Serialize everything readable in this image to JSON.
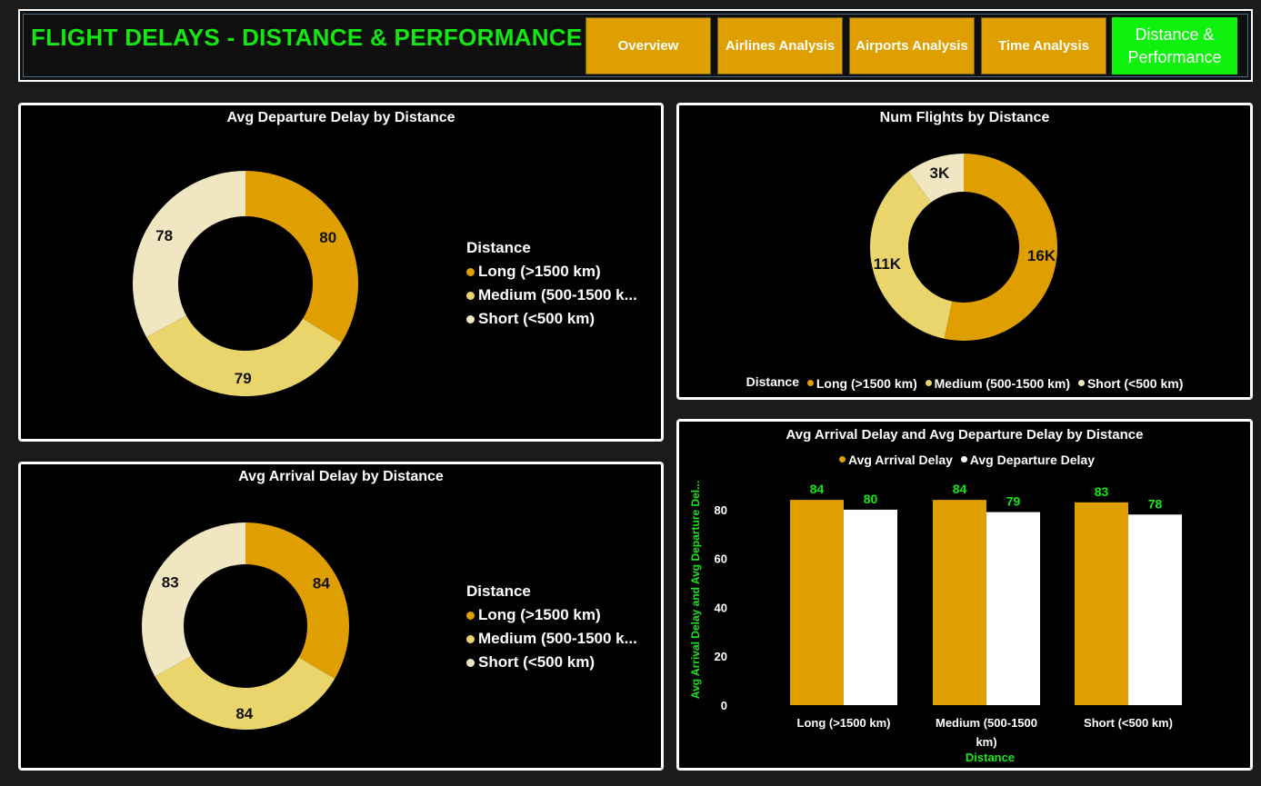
{
  "header": {
    "title": "FLIGHT DELAYS - DISTANCE & PERFORMANCE",
    "nav": [
      {
        "label": "Overview",
        "active": false
      },
      {
        "label": "Airlines Analysis",
        "active": false
      },
      {
        "label": "Airports Analysis",
        "active": false
      },
      {
        "label": "Time Analysis",
        "active": false
      },
      {
        "label": "Distance & Performance",
        "active": true
      }
    ]
  },
  "colors": {
    "long": "#df9f00",
    "medium": "#ead46c",
    "short": "#f1e6c2",
    "arrival": "#df9f00",
    "departure": "#ffffff",
    "accent": "#13e813"
  },
  "legend": {
    "title": "Distance",
    "items": [
      "Long (>1500 km)",
      "Medium (500-1500 k...",
      "Short (<500 km)"
    ],
    "row_items": [
      "Long (>1500 km)",
      "Medium (500-1500 km)",
      "Short (<500 km)"
    ]
  },
  "chart_data": [
    {
      "type": "pie",
      "title": "Avg Departure Delay by Distance",
      "categories": [
        "Long (>1500 km)",
        "Medium (500-1500 km)",
        "Short (<500 km)"
      ],
      "values": [
        80,
        79,
        78
      ],
      "labels": [
        "80",
        "79",
        "78"
      ],
      "legend_title": "Distance",
      "legend_position": "right"
    },
    {
      "type": "pie",
      "title": "Avg Arrival Delay by Distance",
      "categories": [
        "Long (>1500 km)",
        "Medium (500-1500 km)",
        "Short (<500 km)"
      ],
      "values": [
        84,
        84,
        83
      ],
      "labels": [
        "84",
        "84",
        "83"
      ],
      "legend_title": "Distance",
      "legend_position": "right"
    },
    {
      "type": "pie",
      "title": "Num Flights by Distance",
      "categories": [
        "Long (>1500 km)",
        "Medium (500-1500 km)",
        "Short (<500 km)"
      ],
      "values": [
        16000,
        11000,
        3000
      ],
      "labels": [
        "16K",
        "11K",
        "3K"
      ],
      "legend_title": "Distance",
      "legend_position": "bottom"
    },
    {
      "type": "bar",
      "title": "Avg Arrival Delay and Avg Departure Delay by Distance",
      "categories": [
        "Long (>1500 km)",
        "Medium (500-1500 km)",
        "Short (<500 km)"
      ],
      "series": [
        {
          "name": "Avg Arrival Delay",
          "values": [
            84,
            84,
            83
          ]
        },
        {
          "name": "Avg Departure Delay",
          "values": [
            80,
            79,
            78
          ]
        }
      ],
      "xlabel": "Distance",
      "ylabel": "Avg Arrival Delay and Avg Departure Del...",
      "ylim": [
        0,
        90
      ],
      "yticks": [
        0,
        20,
        40,
        60,
        80
      ],
      "grid": false,
      "legend_position": "top"
    }
  ]
}
